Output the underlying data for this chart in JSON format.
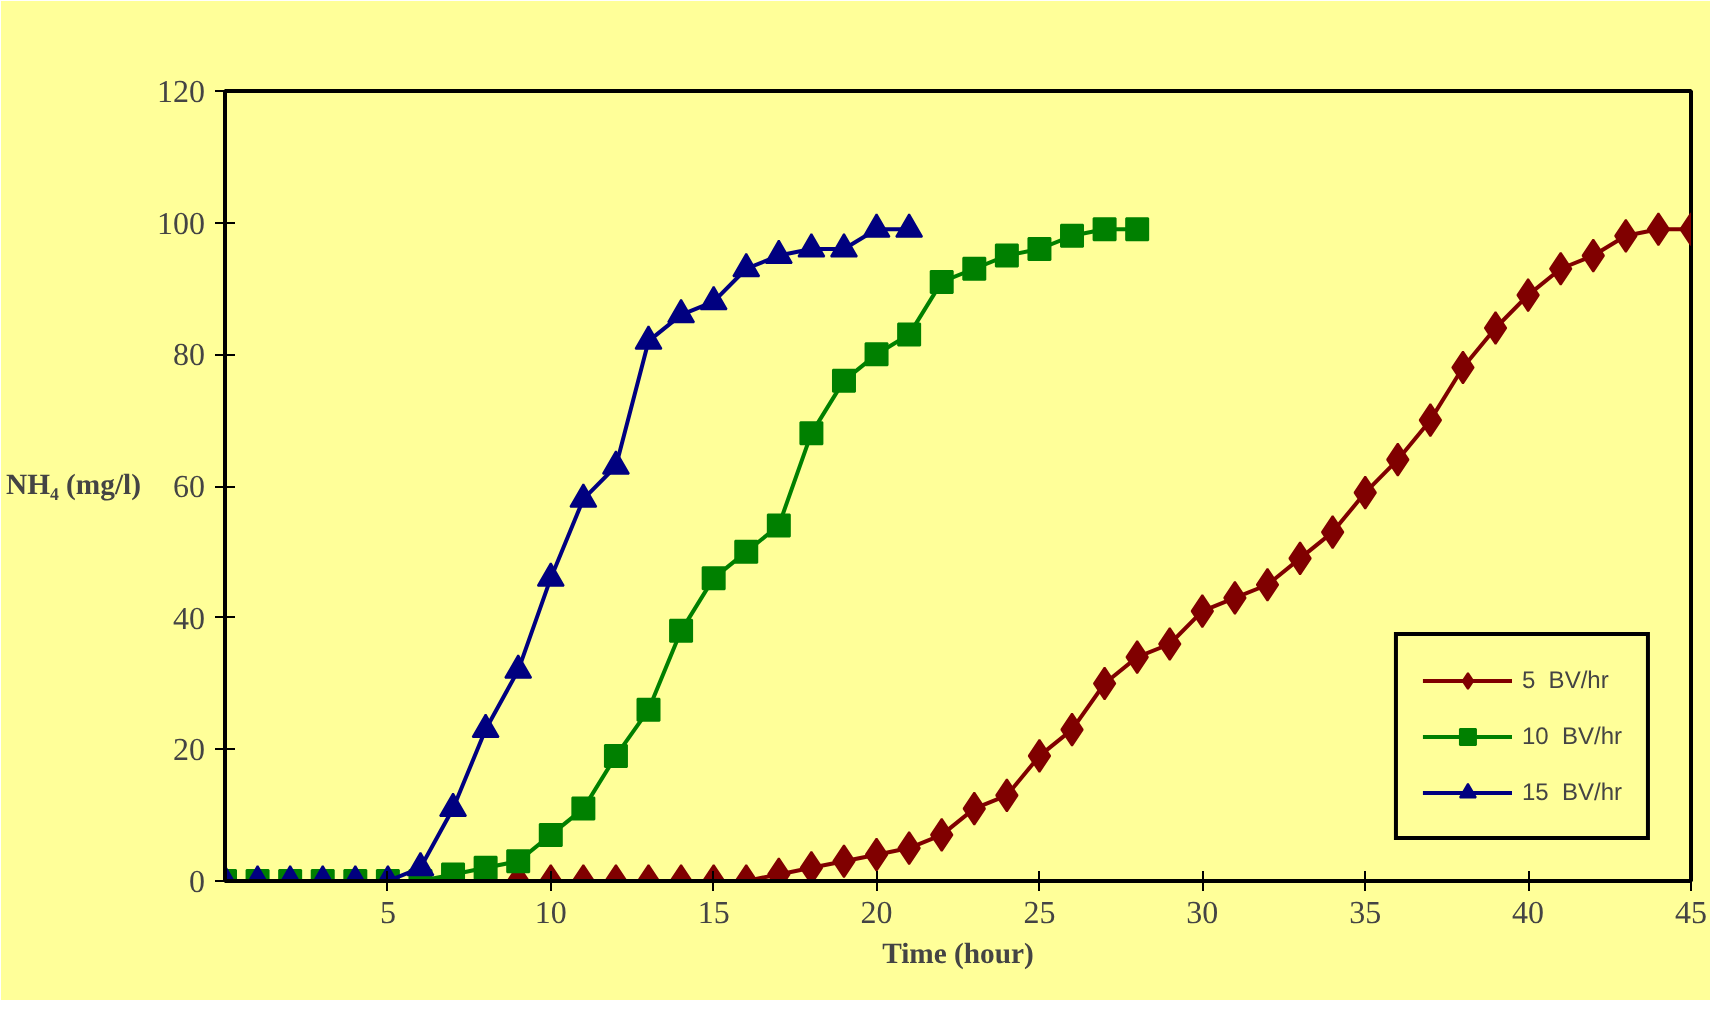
{
  "chart_data": {
    "type": "line",
    "xlabel": "Time (hour)",
    "ylabel": "NH₄ (mg/l)",
    "xlim": [
      0,
      45
    ],
    "ylim": [
      0,
      120
    ],
    "xticks": [
      5,
      10,
      15,
      20,
      25,
      30,
      35,
      40,
      45
    ],
    "yticks": [
      0,
      20,
      40,
      60,
      80,
      100,
      120
    ],
    "grid": false,
    "legend": "bottom right",
    "line_style": "solid",
    "series": [
      {
        "name": "5  BV/hr",
        "color": "#800000",
        "marker": "diamond",
        "x": [
          8,
          9,
          10,
          11,
          12,
          13,
          14,
          15,
          16,
          17,
          18,
          19,
          20,
          21,
          22,
          23,
          24,
          25,
          26,
          27,
          28,
          29,
          30,
          31,
          32,
          33,
          34,
          35,
          36,
          37,
          38,
          39,
          40,
          41,
          42,
          43,
          44,
          45
        ],
        "values": [
          0,
          0,
          0,
          0,
          0,
          0,
          0,
          0,
          0,
          1,
          2,
          3,
          4,
          5,
          7,
          11,
          13,
          19,
          23,
          30,
          34,
          36,
          41,
          43,
          45,
          49,
          53,
          59,
          64,
          70,
          78,
          84,
          89,
          93,
          95,
          98,
          99,
          99
        ]
      },
      {
        "name": "10  BV/hr",
        "color": "#008000",
        "marker": "square",
        "x": [
          0,
          1,
          2,
          3,
          4,
          5,
          6,
          7,
          8,
          9,
          10,
          11,
          12,
          13,
          14,
          15,
          16,
          17,
          18,
          19,
          20,
          21,
          22,
          23,
          24,
          25,
          26,
          27,
          28
        ],
        "values": [
          0,
          0,
          0,
          0,
          0,
          0,
          0,
          1,
          2,
          3,
          7,
          11,
          19,
          26,
          38,
          46,
          50,
          54,
          68,
          76,
          80,
          83,
          91,
          93,
          95,
          96,
          98,
          99,
          99
        ]
      },
      {
        "name": "15  BV/hr",
        "color": "#000080",
        "marker": "triangle",
        "x": [
          0,
          1,
          2,
          3,
          4,
          5,
          6,
          7,
          8,
          9,
          10,
          11,
          12,
          13,
          14,
          15,
          16,
          17,
          18,
          19,
          20,
          21
        ],
        "values": [
          0,
          0,
          0,
          0,
          0,
          0,
          2,
          11,
          23,
          32,
          46,
          58,
          63,
          82,
          86,
          88,
          93,
          95,
          96,
          96,
          99,
          99
        ]
      }
    ]
  }
}
